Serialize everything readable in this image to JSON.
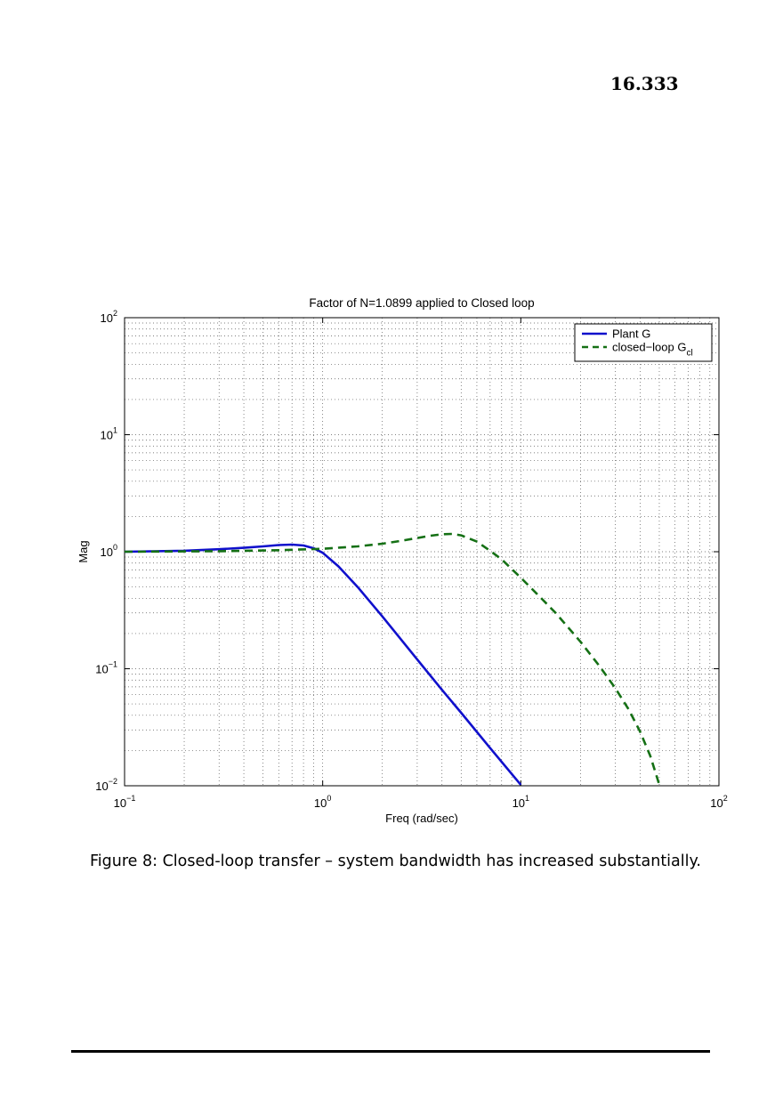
{
  "header": {
    "page_number": "16.333"
  },
  "caption": "Figure 8: Closed-loop transfer – system bandwidth has increased substantially.",
  "chart_data": {
    "type": "line",
    "title": "Factor of N=1.0899 applied to Closed loop",
    "xlabel": "Freq (rad/sec)",
    "ylabel": "Mag",
    "xscale": "log",
    "yscale": "log",
    "xlim": [
      0.1,
      100
    ],
    "ylim": [
      0.01,
      100
    ],
    "grid": true,
    "legend_position": "top-right",
    "x_ticks": [
      {
        "base": "10",
        "exp": "−1",
        "value": 0.1
      },
      {
        "base": "10",
        "exp": "0",
        "value": 1
      },
      {
        "base": "10",
        "exp": "1",
        "value": 10
      },
      {
        "base": "10",
        "exp": "2",
        "value": 100
      }
    ],
    "y_ticks": [
      {
        "base": "10",
        "exp": "−2",
        "value": 0.01
      },
      {
        "base": "10",
        "exp": "−1",
        "value": 0.1
      },
      {
        "base": "10",
        "exp": "0",
        "value": 1
      },
      {
        "base": "10",
        "exp": "1",
        "value": 10
      },
      {
        "base": "10",
        "exp": "2",
        "value": 100
      }
    ],
    "series": [
      {
        "name": "Plant G",
        "legend_main": "Plant G",
        "legend_sub": "",
        "color": "#1010cc",
        "dash": "solid",
        "x": [
          0.1,
          0.2,
          0.3,
          0.4,
          0.5,
          0.6,
          0.7,
          0.8,
          0.9,
          1.0,
          1.2,
          1.5,
          2,
          3,
          4,
          5,
          7,
          10
        ],
        "y": [
          1.0,
          1.02,
          1.05,
          1.08,
          1.11,
          1.14,
          1.15,
          1.13,
          1.07,
          0.98,
          0.75,
          0.5,
          0.28,
          0.12,
          0.066,
          0.042,
          0.021,
          0.0102
        ]
      },
      {
        "name": "closed−loop Gcl",
        "legend_main": "closed−loop G",
        "legend_sub": "cl",
        "color": "#157015",
        "dash": "dashed",
        "x": [
          0.1,
          0.3,
          0.6,
          1.0,
          1.5,
          2,
          2.5,
          3,
          3.5,
          4,
          4.5,
          5,
          6,
          7,
          8,
          10,
          12,
          15,
          20,
          25,
          30,
          35,
          40,
          45,
          50
        ],
        "y": [
          1.0,
          1.01,
          1.03,
          1.06,
          1.11,
          1.17,
          1.24,
          1.31,
          1.37,
          1.41,
          1.42,
          1.38,
          1.22,
          1.02,
          0.86,
          0.6,
          0.44,
          0.3,
          0.17,
          0.105,
          0.068,
          0.045,
          0.029,
          0.018,
          0.0102
        ]
      }
    ]
  }
}
